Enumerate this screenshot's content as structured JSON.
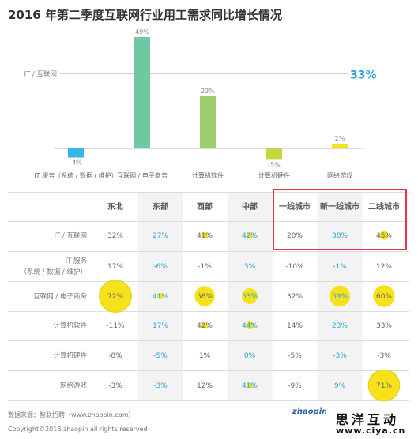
{
  "title": "2016 年第二季度互联网行业用工需求同比增长情况",
  "chart_data": {
    "type": "bar",
    "categories": [
      "IT 服务（系统 / 数据 / 维护）",
      "互联网 / 电子商务",
      "计算机软件",
      "计算机硬件",
      "网络游戏"
    ],
    "values": [
      -4,
      49,
      23,
      -5,
      2
    ],
    "value_labels": [
      "-4%",
      "49%",
      "23%",
      "-5%",
      "2%"
    ],
    "colors": [
      "#3bb3e4",
      "#6fc8a1",
      "#9ccf6b",
      "#c5d73c",
      "#f1e31b"
    ],
    "reference": {
      "label": "IT / 互联网",
      "value": 33,
      "value_label": "33%",
      "color": "#2fa5d8"
    },
    "ylim": [
      -8,
      52
    ]
  },
  "table": {
    "columns": [
      "东北",
      "东部",
      "西部",
      "中部",
      "一线城市",
      "新一线城市",
      "二线城市"
    ],
    "rows": [
      {
        "label": [
          "IT / 互联网"
        ],
        "cells": [
          "32%",
          "27%",
          "41%",
          "42%",
          "20%",
          "38%",
          "45%"
        ],
        "values": [
          32,
          27,
          41,
          42,
          20,
          38,
          45
        ]
      },
      {
        "label": [
          "IT 服务",
          "（系统 / 数据 / 维护）"
        ],
        "cells": [
          "17%",
          "-6%",
          "-1%",
          "3%",
          "-10%",
          "-1%",
          "12%"
        ],
        "values": [
          17,
          -6,
          -1,
          3,
          -10,
          -1,
          12
        ]
      },
      {
        "label": [
          "互联网 / 电子商务"
        ],
        "cells": [
          "72%",
          "41%",
          "58%",
          "53%",
          "32%",
          "59%",
          "60%"
        ],
        "values": [
          72,
          41,
          58,
          53,
          32,
          59,
          60
        ]
      },
      {
        "label": [
          "计算机软件"
        ],
        "cells": [
          "-11%",
          "17%",
          "42%",
          "44%",
          "14%",
          "23%",
          "33%"
        ],
        "values": [
          -11,
          17,
          42,
          44,
          14,
          23,
          33
        ]
      },
      {
        "label": [
          "计算机硬件"
        ],
        "cells": [
          "-8%",
          "-5%",
          "1%",
          "0%",
          "-5%",
          "-3%",
          "-3%"
        ],
        "values": [
          -8,
          -5,
          1,
          0,
          -5,
          -3,
          -3
        ]
      },
      {
        "label": [
          "网络游戏"
        ],
        "cells": [
          "-3%",
          "-3%",
          "12%",
          "41%",
          "-9%",
          "9%",
          "71%"
        ],
        "values": [
          -3,
          -3,
          12,
          41,
          -9,
          9,
          71
        ]
      }
    ],
    "colors": {
      "bubble": "#f5e21b",
      "blue_text": "#2fa5d8"
    }
  },
  "footer": {
    "source": "数据来源：智联招聘（www.zhaopin.com）",
    "copyright": "Copyright©2016 zhaopin all rights reserved",
    "logo": "zhaopin"
  },
  "watermark": {
    "title": "思洋互动",
    "url": "www.ciya.cn"
  }
}
